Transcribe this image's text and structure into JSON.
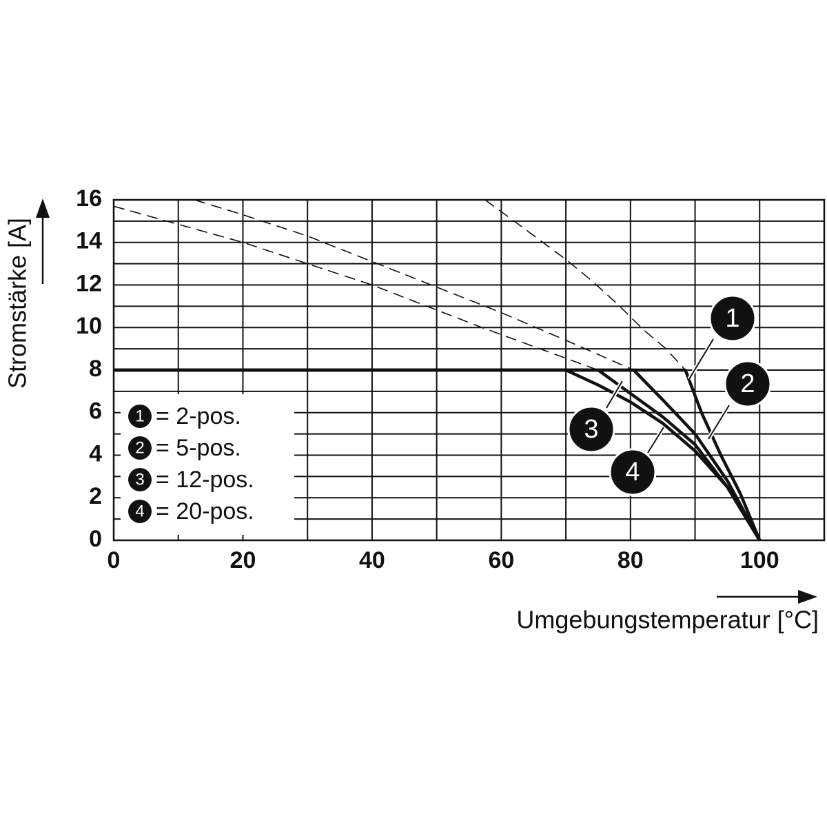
{
  "chart_data": {
    "type": "line",
    "x_label": "Umgebungstemperatur [°C]",
    "y_label": "Stromstärke [A]",
    "xlim": [
      0,
      110
    ],
    "ylim": [
      0,
      16
    ],
    "xticks": [
      0,
      20,
      40,
      60,
      80,
      100
    ],
    "yticks": [
      0,
      2,
      4,
      6,
      8,
      10,
      12,
      14,
      16
    ],
    "xminorticks": [
      10,
      30,
      50,
      70,
      90,
      110
    ],
    "yminorticks": [
      1,
      3,
      5,
      7,
      9,
      11,
      13,
      15
    ],
    "grid": true,
    "color": "#111111",
    "series": [
      {
        "name": "1",
        "style": "solid",
        "x": [
          0,
          88.5,
          91,
          94,
          97,
          100
        ],
        "values": [
          8,
          8,
          6,
          4,
          2.2,
          0
        ]
      },
      {
        "name": "2",
        "style": "solid",
        "x": [
          0,
          80.5,
          85,
          90,
          95,
          100
        ],
        "values": [
          8,
          8,
          6.6,
          5,
          2.8,
          0
        ]
      },
      {
        "name": "3",
        "style": "solid",
        "x": [
          0,
          75,
          80,
          85,
          90,
          95,
          100
        ],
        "values": [
          8,
          8,
          6.9,
          5.8,
          4.5,
          2.5,
          0
        ]
      },
      {
        "name": "4",
        "style": "solid",
        "x": [
          0,
          70,
          75,
          80,
          85,
          90,
          95,
          100
        ],
        "values": [
          8,
          8,
          7.3,
          6.5,
          5.5,
          4.2,
          2.5,
          0
        ]
      },
      {
        "style": "dashed",
        "x": [
          57.5,
          62,
          66,
          70,
          74,
          78,
          82,
          85.5,
          88.5
        ],
        "values": [
          16,
          15,
          14.1,
          13.2,
          12.2,
          11.1,
          9.9,
          9,
          8
        ]
      },
      {
        "style": "dashed",
        "x": [
          12.5,
          20,
          30,
          40,
          50,
          60,
          70,
          80.5
        ],
        "values": [
          16,
          15.3,
          14.3,
          13.1,
          11.9,
          10.7,
          9.4,
          8
        ]
      },
      {
        "style": "dashed",
        "x": [
          0,
          20,
          40,
          57,
          75
        ],
        "values": [
          15.7,
          14,
          12,
          10,
          8
        ]
      }
    ],
    "legend": [
      {
        "marker": "1",
        "label": "= 2-pos."
      },
      {
        "marker": "2",
        "label": "= 5-pos."
      },
      {
        "marker": "3",
        "label": "= 12-pos."
      },
      {
        "marker": "4",
        "label": "= 20-pos."
      }
    ]
  }
}
